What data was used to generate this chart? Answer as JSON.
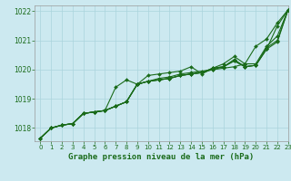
{
  "title": "Graphe pression niveau de la mer (hPa)",
  "background_color": "#cce9f0",
  "grid_color": "#aad4dc",
  "line_color": "#1a6b1a",
  "xlim": [
    -0.5,
    23
  ],
  "ylim": [
    1017.55,
    1022.2
  ],
  "yticks": [
    1018,
    1019,
    1020,
    1021,
    1022
  ],
  "xticks": [
    0,
    1,
    2,
    3,
    4,
    5,
    6,
    7,
    8,
    9,
    10,
    11,
    12,
    13,
    14,
    15,
    16,
    17,
    18,
    19,
    20,
    21,
    22,
    23
  ],
  "lines": [
    [
      1017.65,
      1018.0,
      1018.1,
      1018.15,
      1018.5,
      1018.55,
      1018.6,
      1019.4,
      1019.65,
      1019.5,
      1019.8,
      1019.85,
      1019.9,
      1019.95,
      1020.1,
      1019.85,
      1020.05,
      1020.2,
      1020.45,
      1020.2,
      1020.8,
      1021.05,
      1021.6,
      1022.05
    ],
    [
      1017.65,
      1018.0,
      1018.1,
      1018.15,
      1018.5,
      1018.55,
      1018.6,
      1018.75,
      1018.9,
      1019.5,
      1019.6,
      1019.7,
      1019.75,
      1019.85,
      1019.9,
      1019.95,
      1020.0,
      1020.05,
      1020.1,
      1020.2,
      1020.2,
      1020.8,
      1021.15,
      1022.05
    ],
    [
      1017.65,
      1018.0,
      1018.1,
      1018.15,
      1018.5,
      1018.55,
      1018.6,
      1018.75,
      1018.9,
      1019.5,
      1019.6,
      1019.65,
      1019.7,
      1019.8,
      1019.85,
      1019.9,
      1020.0,
      1020.1,
      1020.35,
      1020.1,
      1020.15,
      1020.75,
      1021.0,
      1022.05
    ],
    [
      1017.65,
      1018.0,
      1018.1,
      1018.15,
      1018.5,
      1018.55,
      1018.6,
      1018.75,
      1018.9,
      1019.5,
      1019.6,
      1019.65,
      1019.7,
      1019.8,
      1019.85,
      1019.9,
      1020.05,
      1020.1,
      1020.3,
      1020.1,
      1020.15,
      1020.7,
      1020.95,
      1022.05
    ],
    [
      1017.65,
      1018.0,
      1018.1,
      1018.15,
      1018.5,
      1018.55,
      1018.6,
      1018.75,
      1018.9,
      1019.5,
      1019.6,
      1019.65,
      1019.7,
      1019.8,
      1019.85,
      1019.9,
      1020.05,
      1020.1,
      1020.3,
      1020.1,
      1020.15,
      1020.7,
      1021.5,
      1022.05
    ]
  ],
  "marker": "D",
  "marker_size": 2.0,
  "line_width": 0.8
}
